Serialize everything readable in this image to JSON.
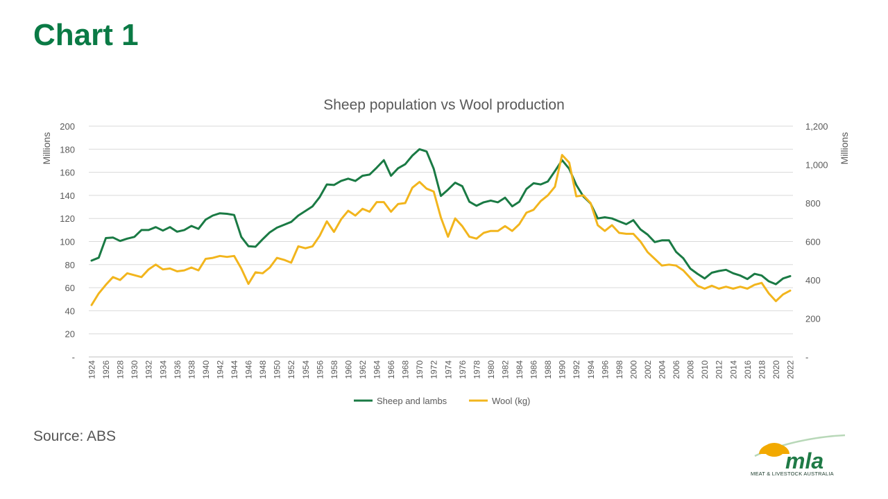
{
  "slide": {
    "title": "Chart 1",
    "source": "Source: ABS",
    "logo": {
      "wordmark": "mla",
      "tagline": "MEAT & LIVESTOCK AUSTRALIA",
      "colors": {
        "green": "#1f7a46",
        "sun": "#f2a900",
        "swoosh": "#b8d8b8"
      }
    }
  },
  "chart_data": {
    "type": "line",
    "title": "Sheep population vs Wool production",
    "ylabel_left": "Millions",
    "ylabel_right": "Millions",
    "ylim_left": [
      0,
      200
    ],
    "yticks_left": [
      "-",
      "20",
      "40",
      "60",
      "80",
      "100",
      "120",
      "140",
      "160",
      "180",
      "200"
    ],
    "ylim_right": [
      0,
      1200
    ],
    "yticks_right": [
      "-",
      "200",
      "400",
      "600",
      "800",
      "1,000",
      "1,200"
    ],
    "grid": true,
    "legend_position": "bottom",
    "x_tick_labels": [
      "1924",
      "1926",
      "1928",
      "1930",
      "1932",
      "1934",
      "1936",
      "1938",
      "1940",
      "1942",
      "1944",
      "1946",
      "1948",
      "1950",
      "1952",
      "1954",
      "1956",
      "1958",
      "1960",
      "1962",
      "1964",
      "1966",
      "1968",
      "1970",
      "1972",
      "1974",
      "1976",
      "1978",
      "1980",
      "1982",
      "1984",
      "1986",
      "1988",
      "1990",
      "1992",
      "1994",
      "1996",
      "1998",
      "2000",
      "2002",
      "2004",
      "2006",
      "2008",
      "2010",
      "2012",
      "2014",
      "2016",
      "2018",
      "2020",
      "2022"
    ],
    "x": [
      1924,
      1925,
      1926,
      1927,
      1928,
      1929,
      1930,
      1931,
      1932,
      1933,
      1934,
      1935,
      1936,
      1937,
      1938,
      1939,
      1940,
      1941,
      1942,
      1943,
      1944,
      1945,
      1946,
      1947,
      1948,
      1949,
      1950,
      1951,
      1952,
      1953,
      1954,
      1955,
      1956,
      1957,
      1958,
      1959,
      1960,
      1961,
      1962,
      1963,
      1964,
      1965,
      1966,
      1967,
      1968,
      1969,
      1970,
      1971,
      1972,
      1973,
      1974,
      1975,
      1976,
      1977,
      1978,
      1979,
      1980,
      1981,
      1982,
      1983,
      1984,
      1985,
      1986,
      1987,
      1988,
      1989,
      1990,
      1991,
      1992,
      1993,
      1994,
      1995,
      1996,
      1997,
      1998,
      1999,
      2000,
      2001,
      2002,
      2003,
      2004,
      2005,
      2006,
      2007,
      2008,
      2009,
      2010,
      2011,
      2012,
      2013,
      2014,
      2015,
      2016,
      2017,
      2018,
      2019,
      2020,
      2021,
      2022
    ],
    "series": [
      {
        "name": "Sheep and lambs",
        "axis": "left",
        "color": "#1a7a44",
        "values": [
          83.5,
          86,
          103,
          103.5,
          100.5,
          102.5,
          104,
          110,
          110,
          112.5,
          109.5,
          112.5,
          108.5,
          110,
          113.5,
          111,
          119,
          122.5,
          124.5,
          124,
          123,
          104,
          96,
          95.5,
          102,
          108,
          112,
          114.5,
          117,
          122.5,
          126.5,
          130.5,
          138.5,
          149.5,
          149,
          152.5,
          154.5,
          152.5,
          157,
          158,
          164,
          170.5,
          157,
          163.5,
          167,
          174.5,
          180,
          178,
          163,
          139.5,
          145,
          151,
          148,
          134.5,
          131,
          134,
          135.5,
          134,
          138,
          130.5,
          134.5,
          145.5,
          150.5,
          149.5,
          152,
          161,
          170.5,
          163,
          149,
          139,
          133,
          120,
          121,
          120,
          117.5,
          115,
          118.5,
          110.5,
          106,
          99.5,
          101,
          101,
          91,
          85.5,
          76.5,
          72,
          68,
          73,
          74.5,
          75.5,
          72.5,
          70.5,
          67.5,
          72,
          70.5,
          65.5,
          63,
          68,
          70
        ]
      },
      {
        "name": "Wool (kg)",
        "axis": "right",
        "color": "#f2b51d",
        "values": [
          270,
          330,
          375,
          415,
          400,
          435,
          425,
          415,
          455,
          480,
          455,
          460,
          445,
          450,
          465,
          450,
          510,
          515,
          525,
          520,
          525,
          460,
          380,
          440,
          435,
          465,
          515,
          505,
          490,
          575,
          565,
          575,
          630,
          705,
          650,
          715,
          760,
          735,
          770,
          755,
          805,
          805,
          755,
          795,
          800,
          880,
          910,
          875,
          860,
          725,
          625,
          720,
          680,
          625,
          615,
          645,
          655,
          655,
          680,
          655,
          690,
          750,
          765,
          810,
          840,
          885,
          1050,
          1010,
          835,
          840,
          800,
          685,
          655,
          685,
          645,
          640,
          640,
          600,
          545,
          510,
          475,
          480,
          475,
          450,
          410,
          370,
          355,
          370,
          355,
          365,
          355,
          365,
          355,
          375,
          385,
          330,
          290,
          325,
          345
        ]
      }
    ]
  }
}
